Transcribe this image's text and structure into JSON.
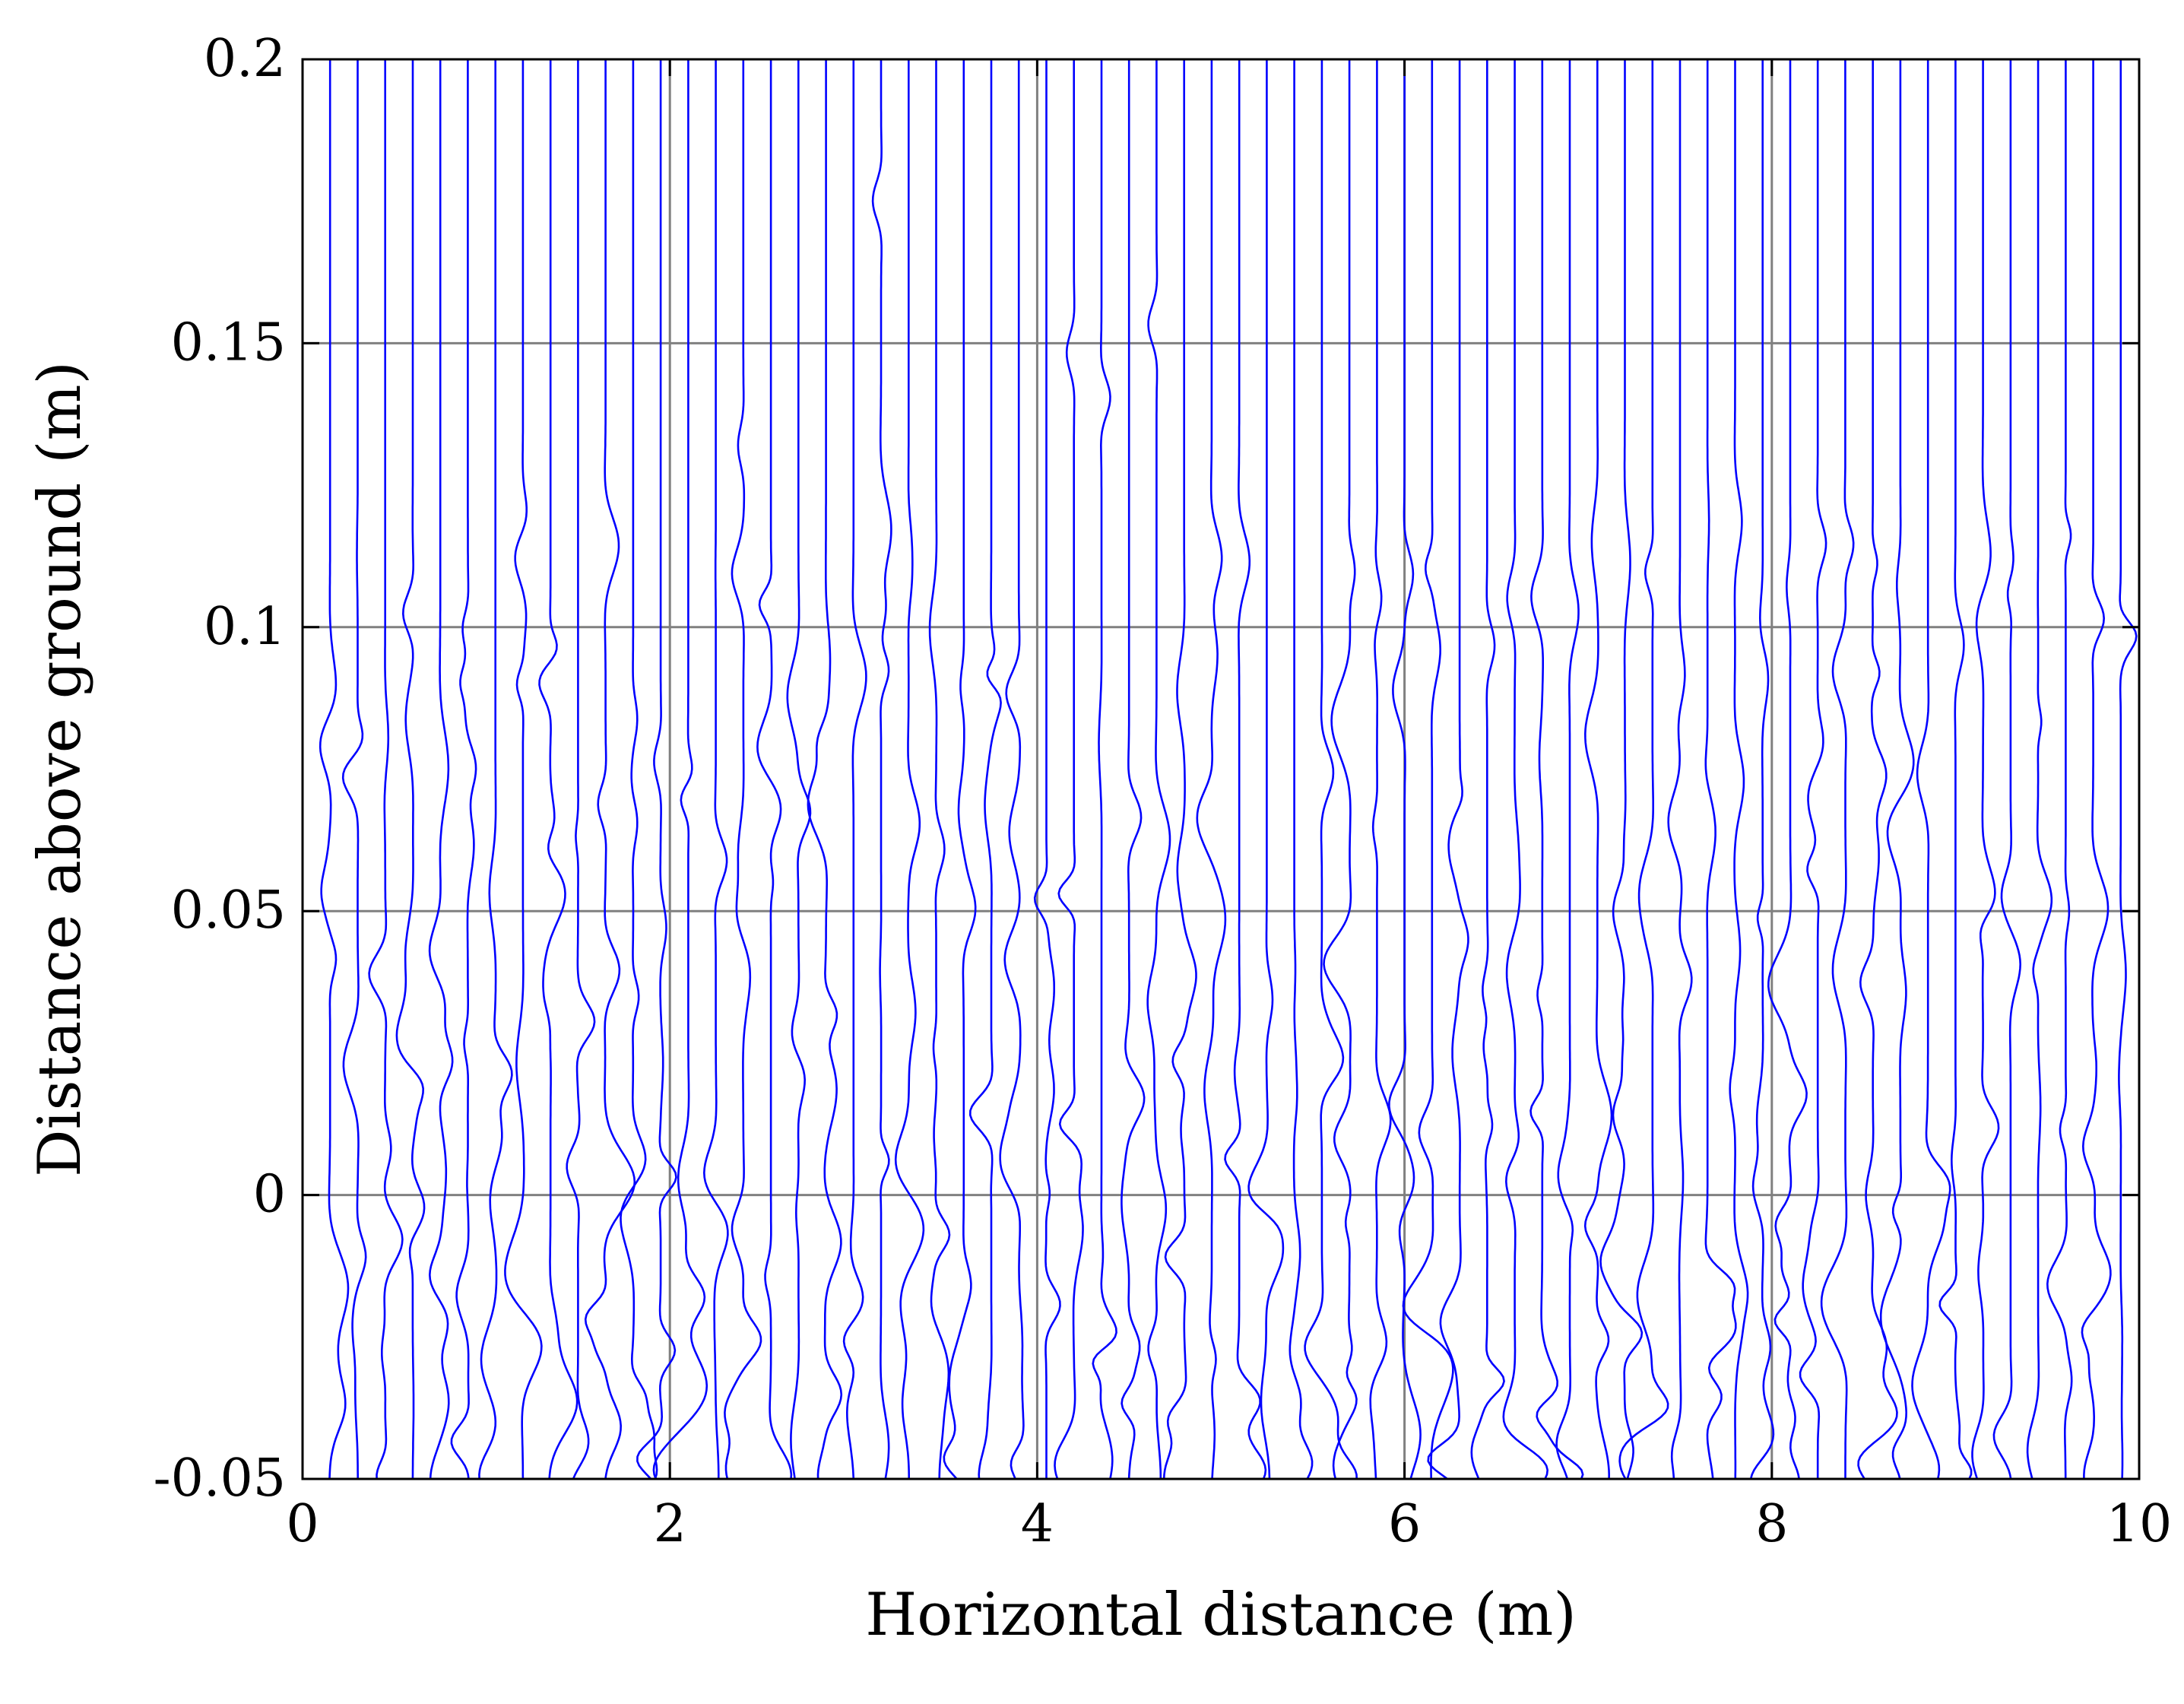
{
  "chart_data": {
    "type": "line",
    "title": "",
    "xlabel": "Horizontal distance (m)",
    "ylabel": "Distance above ground (m)",
    "xlim": [
      0,
      10
    ],
    "ylim": [
      -0.05,
      0.2
    ],
    "x_ticks": [
      0,
      2,
      4,
      6,
      8,
      10
    ],
    "x_tick_labels": [
      "0",
      "2",
      "4",
      "6",
      "8",
      "10"
    ],
    "y_ticks": [
      -0.05,
      0,
      0.05,
      0.1,
      0.15,
      0.2
    ],
    "y_tick_labels": [
      "-0.05",
      "0",
      "0.05",
      "0.1",
      "0.15",
      "0.2"
    ],
    "grid": true,
    "legend": false,
    "line_color": "#0000ff",
    "grid_color": "#808080",
    "trace_spacing": 0.15,
    "trace_count": 66,
    "series": [
      {
        "baseline_x": 0.15,
        "x": [
          0.17,
          0.25,
          0.18,
          0.15,
          0.15
        ],
        "y": [
          -0.05,
          0.0,
          0.06,
          0.1,
          0.2
        ]
      },
      {
        "baseline_x": 0.3,
        "x": [
          0.28,
          0.38,
          0.22,
          0.3,
          0.3
        ],
        "y": [
          -0.05,
          0.02,
          0.068,
          0.1,
          0.2
        ]
      },
      {
        "baseline_x": 1.65,
        "x": [
          1.65,
          1.82,
          1.55,
          1.68,
          1.65
        ],
        "y": [
          -0.05,
          -0.02,
          0.03,
          0.05,
          0.2
        ]
      },
      {
        "baseline_x": 2.4,
        "x": [
          2.38,
          2.0,
          2.5,
          2.38,
          2.4
        ],
        "y": [
          -0.05,
          -0.012,
          0.0,
          0.03,
          0.2
        ]
      },
      {
        "baseline_x": 4.2,
        "x": [
          4.18,
          4.5,
          4.1,
          4.2,
          4.2
        ],
        "y": [
          -0.05,
          -0.02,
          0.0,
          0.02,
          0.2
        ]
      },
      {
        "baseline_x": 5.4,
        "x": [
          5.38,
          5.55,
          5.2,
          5.4,
          5.4
        ],
        "y": [
          -0.05,
          -0.02,
          0.065,
          0.08,
          0.2
        ]
      },
      {
        "baseline_x": 5.85,
        "x": [
          5.85,
          5.75,
          5.9,
          5.8,
          5.85
        ],
        "y": [
          -0.05,
          0.05,
          0.16,
          0.19,
          0.2
        ]
      },
      {
        "baseline_x": 6.75,
        "x": [
          6.72,
          6.55,
          6.78,
          6.7,
          6.75
        ],
        "y": [
          -0.05,
          0.04,
          0.09,
          0.1,
          0.2
        ]
      },
      {
        "baseline_x": 7.95,
        "x": [
          7.9,
          7.4,
          7.95,
          7.9,
          7.95
        ],
        "y": [
          -0.05,
          -0.005,
          0.003,
          0.03,
          0.2
        ]
      },
      {
        "baseline_x": 9.9,
        "x": [
          9.88,
          9.7,
          9.95,
          9.9,
          9.9
        ],
        "y": [
          -0.05,
          0.02,
          0.06,
          0.08,
          0.2
        ]
      }
    ]
  }
}
